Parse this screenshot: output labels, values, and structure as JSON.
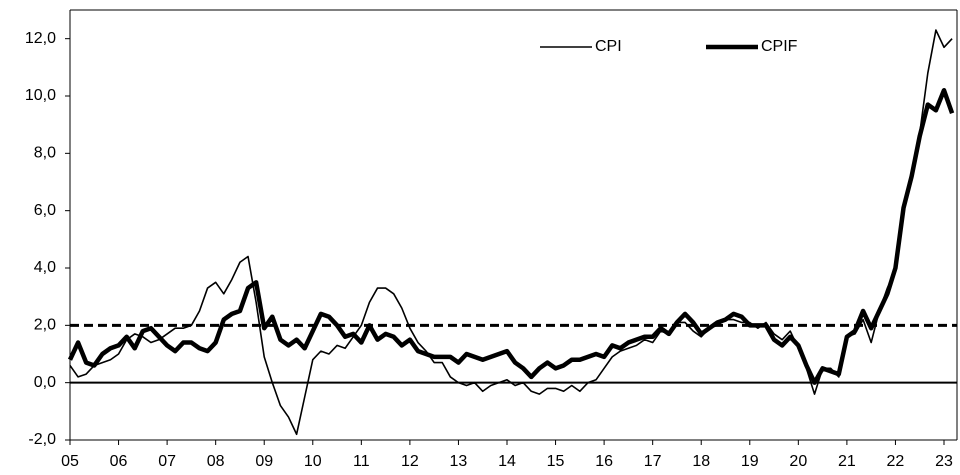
{
  "chart_data": {
    "type": "line",
    "categories": [
      "05",
      null,
      null,
      null,
      null,
      null,
      "06",
      null,
      null,
      null,
      null,
      null,
      "07",
      null,
      null,
      null,
      null,
      null,
      "08",
      null,
      null,
      null,
      null,
      null,
      "09",
      null,
      null,
      null,
      null,
      null,
      "10",
      null,
      null,
      null,
      null,
      null,
      "11",
      null,
      null,
      null,
      null,
      null,
      "12",
      null,
      null,
      null,
      null,
      null,
      "13",
      null,
      null,
      null,
      null,
      null,
      "14",
      null,
      null,
      null,
      null,
      null,
      "15",
      null,
      null,
      null,
      null,
      null,
      "16",
      null,
      null,
      null,
      null,
      null,
      "17",
      null,
      null,
      null,
      null,
      null,
      "18",
      null,
      null,
      null,
      null,
      null,
      "19",
      null,
      null,
      null,
      null,
      null,
      "20",
      null,
      null,
      null,
      null,
      null,
      "21",
      null,
      null,
      null,
      null,
      null,
      "22",
      null,
      null,
      null,
      null,
      null,
      "23",
      null
    ],
    "series": [
      {
        "name": "CPI",
        "color": "#000000",
        "values": [
          0.6,
          0.2,
          0.3,
          0.6,
          0.7,
          0.8,
          1.0,
          1.5,
          1.7,
          1.6,
          1.4,
          1.5,
          1.7,
          1.9,
          1.9,
          2.0,
          2.5,
          3.3,
          3.5,
          3.1,
          3.6,
          4.2,
          4.4,
          2.8,
          0.9,
          0.0,
          -0.8,
          -1.2,
          -1.8,
          -0.5,
          0.8,
          1.1,
          1.0,
          1.3,
          1.2,
          1.6,
          2.0,
          2.8,
          3.3,
          3.3,
          3.1,
          2.6,
          1.9,
          1.4,
          1.1,
          0.7,
          0.7,
          0.2,
          0.0,
          -0.1,
          0.0,
          -0.3,
          -0.1,
          0.0,
          0.1,
          -0.1,
          0.0,
          -0.3,
          -0.4,
          -0.2,
          -0.2,
          -0.3,
          -0.1,
          -0.3,
          0.0,
          0.1,
          0.5,
          0.9,
          1.1,
          1.2,
          1.3,
          1.5,
          1.4,
          1.8,
          1.7,
          2.1,
          2.1,
          1.8,
          1.6,
          1.9,
          2.0,
          2.2,
          2.2,
          2.1,
          2.1,
          1.9,
          2.1,
          1.7,
          1.5,
          1.8,
          1.2,
          0.5,
          -0.4,
          0.5,
          0.5,
          0.2,
          1.6,
          1.7,
          2.2,
          1.4,
          2.5,
          3.3,
          3.9,
          6.1,
          7.3,
          8.7,
          10.8,
          12.3,
          11.7,
          12.0
        ]
      },
      {
        "name": "CPIF",
        "color": "#000000",
        "values": [
          0.8,
          1.4,
          0.7,
          0.6,
          1.0,
          1.2,
          1.3,
          1.6,
          1.2,
          1.8,
          1.9,
          1.6,
          1.3,
          1.1,
          1.4,
          1.4,
          1.2,
          1.1,
          1.4,
          2.2,
          2.4,
          2.5,
          3.3,
          3.5,
          1.9,
          2.3,
          1.5,
          1.3,
          1.5,
          1.2,
          1.8,
          2.4,
          2.3,
          2.0,
          1.6,
          1.7,
          1.4,
          2.0,
          1.5,
          1.7,
          1.6,
          1.3,
          1.5,
          1.1,
          1.0,
          0.9,
          0.9,
          0.9,
          0.7,
          1.0,
          0.9,
          0.8,
          0.9,
          1.0,
          1.1,
          0.7,
          0.5,
          0.2,
          0.5,
          0.7,
          0.5,
          0.6,
          0.8,
          0.8,
          0.9,
          1.0,
          0.9,
          1.3,
          1.2,
          1.4,
          1.5,
          1.6,
          1.6,
          1.9,
          1.7,
          2.1,
          2.4,
          2.1,
          1.7,
          1.9,
          2.1,
          2.2,
          2.4,
          2.3,
          2.0,
          2.0,
          2.0,
          1.5,
          1.3,
          1.6,
          1.3,
          0.6,
          0.0,
          0.5,
          0.4,
          0.3,
          1.6,
          1.8,
          2.5,
          1.9,
          2.5,
          3.1,
          4.0,
          6.1,
          7.2,
          8.6,
          9.7,
          9.5,
          10.2,
          9.4
        ]
      }
    ],
    "target_line": 2,
    "ylim": [
      -2,
      13
    ],
    "yticks": [
      {
        "value": -2,
        "label": "-2,0"
      },
      {
        "value": 0,
        "label": "0,0"
      },
      {
        "value": 2,
        "label": "2,0"
      },
      {
        "value": 4,
        "label": "4,0"
      },
      {
        "value": 6,
        "label": "6,0"
      },
      {
        "value": 8,
        "label": "8,0"
      },
      {
        "value": 10,
        "label": "10,0"
      },
      {
        "value": 12,
        "label": "12,0"
      }
    ],
    "legend": "upper right"
  }
}
